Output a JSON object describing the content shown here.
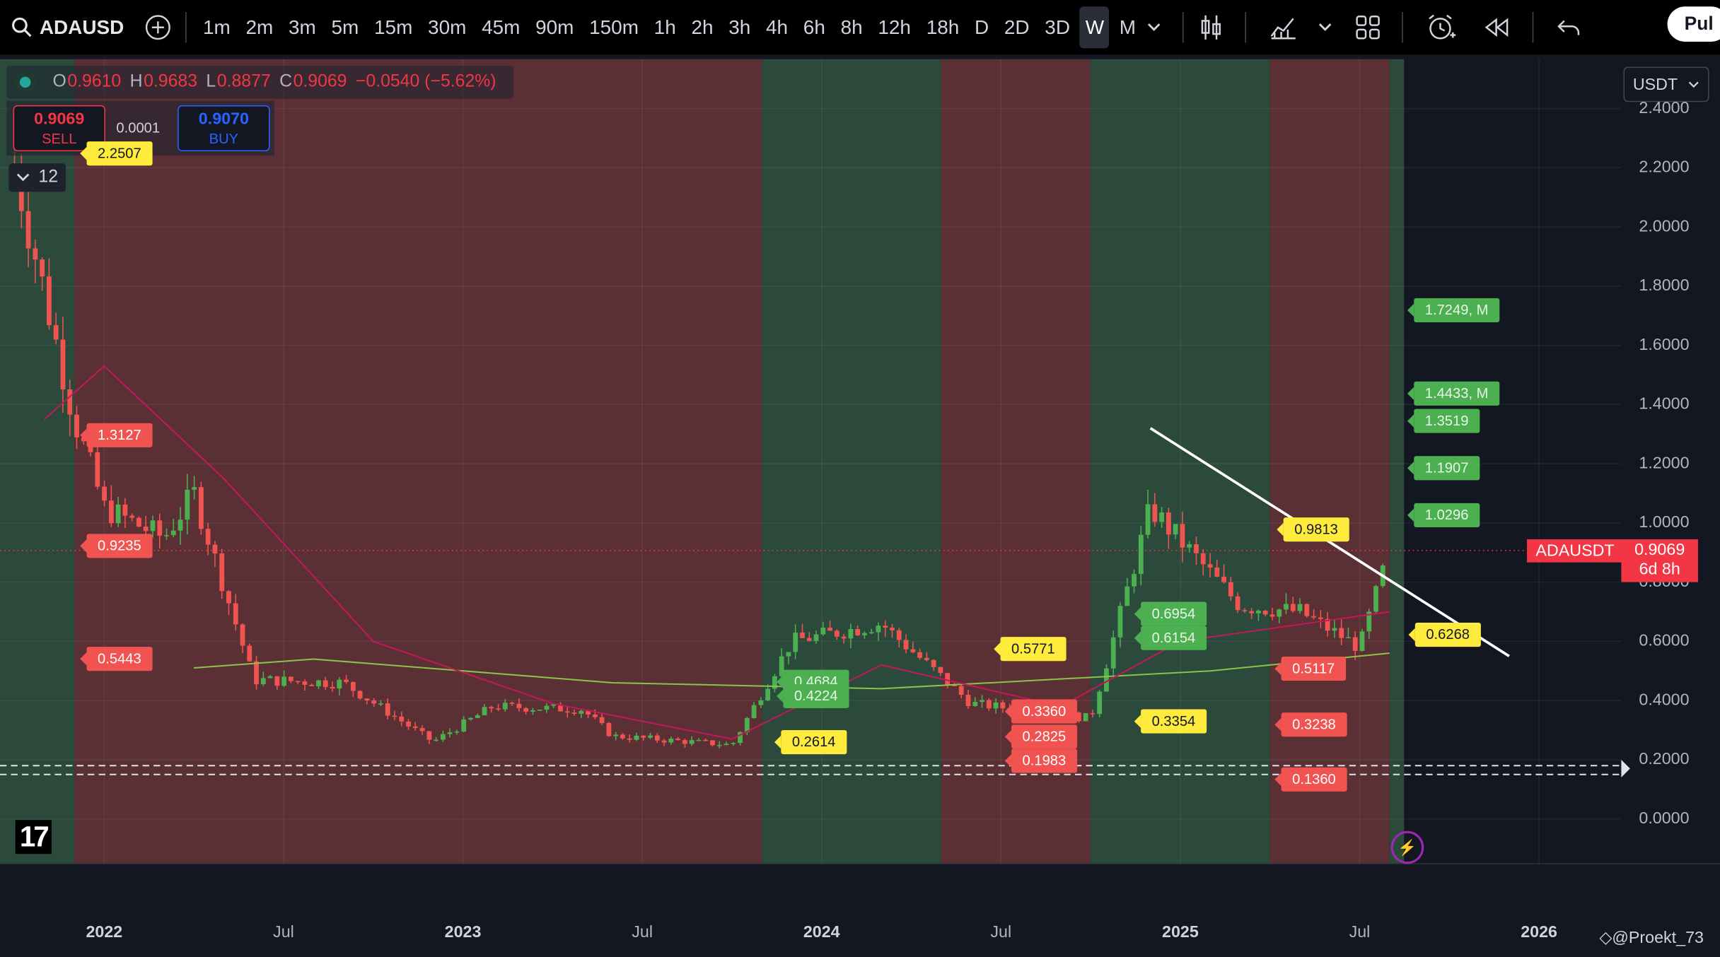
{
  "symbol": "ADAUSD",
  "toolbar": {
    "intervals": [
      "1m",
      "2m",
      "3m",
      "5m",
      "15m",
      "30m",
      "45m",
      "90m",
      "150m",
      "1h",
      "2h",
      "3h",
      "4h",
      "6h",
      "8h",
      "12h",
      "18h",
      "D",
      "2D",
      "3D",
      "W",
      "M"
    ],
    "active_interval": "W",
    "publish_label": "Pul"
  },
  "legend": {
    "o_label": "O",
    "o": "0.9610",
    "h_label": "H",
    "h": "0.9683",
    "l_label": "L",
    "l": "0.8877",
    "c_label": "C",
    "c": "0.9069",
    "change": "−0.0540 (−5.62%)"
  },
  "trade": {
    "sell_price": "0.9069",
    "sell_label": "SELL",
    "spread": "0.0001",
    "buy_price": "0.9070",
    "buy_label": "BUY"
  },
  "indicator_collapse": "12",
  "currency": "USDT",
  "last_price": {
    "symbol": "ADAUSDT",
    "price": "0.9069",
    "countdown": "6d 8h"
  },
  "y_axis": [
    "2.4000",
    "2.2000",
    "2.0000",
    "1.8000",
    "1.6000",
    "1.4000",
    "1.2000",
    "1.0000",
    "0.8000",
    "0.6000",
    "0.4000",
    "0.2000",
    "0.0000"
  ],
  "x_axis": [
    "2022",
    "Jul",
    "2023",
    "Jul",
    "2024",
    "Jul",
    "2025",
    "Jul",
    "2026"
  ],
  "price_tags": [
    {
      "text": "2.2507",
      "color": "yellow"
    },
    {
      "text": "1.7249, M",
      "color": "green"
    },
    {
      "text": "1.4433, M",
      "color": "green"
    },
    {
      "text": "1.3519",
      "color": "green"
    },
    {
      "text": "1.1907",
      "color": "green"
    },
    {
      "text": "1.0296",
      "color": "green"
    },
    {
      "text": "0.9813",
      "color": "yellow"
    },
    {
      "text": "1.3127",
      "color": "red"
    },
    {
      "text": "0.9235",
      "color": "red"
    },
    {
      "text": "0.5443",
      "color": "red"
    },
    {
      "text": "0.6954",
      "color": "green"
    },
    {
      "text": "0.6154",
      "color": "green"
    },
    {
      "text": "0.5771",
      "color": "yellow"
    },
    {
      "text": "0.6268",
      "color": "yellow"
    },
    {
      "text": "0.5117",
      "color": "red"
    },
    {
      "text": "0.4684",
      "color": "green"
    },
    {
      "text": "0.4224",
      "color": "green"
    },
    {
      "text": "0.3360",
      "color": "red"
    },
    {
      "text": "0.2825",
      "color": "red"
    },
    {
      "text": "0.1983",
      "color": "red"
    },
    {
      "text": "0.3354",
      "color": "yellow"
    },
    {
      "text": "0.3238",
      "color": "red"
    },
    {
      "text": "0.2614",
      "color": "yellow"
    },
    {
      "text": "0.1360",
      "color": "red"
    }
  ],
  "chart_data": {
    "type": "candlestick",
    "timeframe": "W",
    "ylim": [
      -0.08,
      2.45
    ],
    "grid": true,
    "close_path": [
      {
        "date": "2021-10",
        "value": 2.2
      },
      {
        "date": "2021-12",
        "value": 1.35
      },
      {
        "date": "2022-01",
        "value": 1.05
      },
      {
        "date": "2022-03",
        "value": 0.95
      },
      {
        "date": "2022-04",
        "value": 1.1
      },
      {
        "date": "2022-06",
        "value": 0.47
      },
      {
        "date": "2022-09",
        "value": 0.46
      },
      {
        "date": "2022-12",
        "value": 0.26
      },
      {
        "date": "2023-02",
        "value": 0.38
      },
      {
        "date": "2023-05",
        "value": 0.37
      },
      {
        "date": "2023-06",
        "value": 0.28
      },
      {
        "date": "2023-10",
        "value": 0.25
      },
      {
        "date": "2023-12",
        "value": 0.6
      },
      {
        "date": "2024-03",
        "value": 0.66
      },
      {
        "date": "2024-06",
        "value": 0.39
      },
      {
        "date": "2024-10",
        "value": 0.34
      },
      {
        "date": "2024-12",
        "value": 1.05
      },
      {
        "date": "2025-03",
        "value": 0.72
      },
      {
        "date": "2025-05",
        "value": 0.7
      },
      {
        "date": "2025-07",
        "value": 0.58
      },
      {
        "date": "2025-08",
        "value": 0.9069
      }
    ],
    "long_ma": [
      {
        "date": "2022-04",
        "value": 0.51
      },
      {
        "date": "2022-08",
        "value": 0.54
      },
      {
        "date": "2023-06",
        "value": 0.46
      },
      {
        "date": "2024-03",
        "value": 0.44
      },
      {
        "date": "2025-02",
        "value": 0.5
      },
      {
        "date": "2025-08",
        "value": 0.56
      }
    ],
    "short_ma": [
      {
        "date": "2021-11",
        "value": 1.35
      },
      {
        "date": "2022-01",
        "value": 1.53
      },
      {
        "date": "2022-05",
        "value": 1.15
      },
      {
        "date": "2022-10",
        "value": 0.6
      },
      {
        "date": "2023-04",
        "value": 0.39
      },
      {
        "date": "2023-10",
        "value": 0.27
      },
      {
        "date": "2024-03",
        "value": 0.52
      },
      {
        "date": "2024-09",
        "value": 0.38
      },
      {
        "date": "2025-01",
        "value": 0.6
      },
      {
        "date": "2025-08",
        "value": 0.7
      }
    ],
    "trendline": [
      {
        "date": "2024-12",
        "value": 1.32
      },
      {
        "date": "2025-12",
        "value": 0.55
      }
    ],
    "horizontal_levels": [
      0.18,
      0.15
    ],
    "regimes": [
      {
        "from": "2021-09",
        "to": "2021-12",
        "state": "bull"
      },
      {
        "from": "2021-12",
        "to": "2023-11",
        "state": "bear"
      },
      {
        "from": "2023-11",
        "to": "2024-05",
        "state": "bull"
      },
      {
        "from": "2024-05",
        "to": "2024-10",
        "state": "bear"
      },
      {
        "from": "2024-10",
        "to": "2025-04",
        "state": "bull"
      },
      {
        "from": "2025-04",
        "to": "2025-08",
        "state": "bear"
      },
      {
        "from": "2025-08",
        "to": "2025-09",
        "state": "bull"
      }
    ]
  }
}
